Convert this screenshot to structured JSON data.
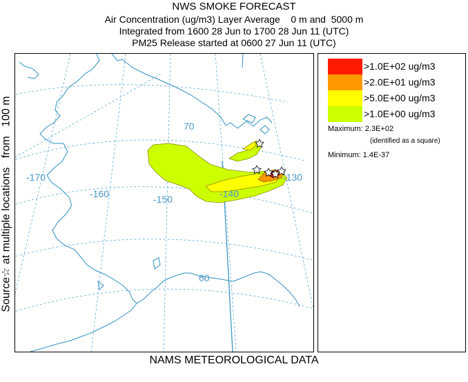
{
  "title": {
    "line1": "NWS SMOKE FORECAST",
    "line2": "Air Concentration (ug/m3) Layer Average    0 m and  5000 m",
    "line3": "Integrated from 1600 28 Jun to 1700 28 Jun 11 (UTC)",
    "line4": "PM25 Release started at 0600 27 Jun 11 (UTC)"
  },
  "side_label": "Source☆ at multiple locations   from   100 m",
  "footer": "NAMS METEOROLOGICAL DATA",
  "colors": {
    "level1": "#ff1a00",
    "level2": "#ff9900",
    "level3": "#ffff00",
    "level4": "#ccff00",
    "coast": "#2f8fc0",
    "graticule": "#5aa8d6"
  },
  "legend": {
    "levels": [
      {
        "label": ">1.0E+02 ug/m3",
        "color": "#ff1a00"
      },
      {
        "label": ">2.0E+01 ug/m3",
        "color": "#ff9900"
      },
      {
        "label": ">5.0E+00 ug/m3",
        "color": "#ffff00"
      },
      {
        "label": ">1.0E+00 ug/m3",
        "color": "#ccff00"
      }
    ],
    "maximum": "Maximum: 2.3E+02",
    "maximum_note": "(identified as a square)",
    "minimum": "Minimum: 1.4E-37"
  },
  "map": {
    "lat_labels": [
      "70",
      "60"
    ],
    "lon_labels": [
      "-170",
      "-160",
      "-150",
      "-140",
      "-130"
    ],
    "source_marker": "star-icon"
  }
}
